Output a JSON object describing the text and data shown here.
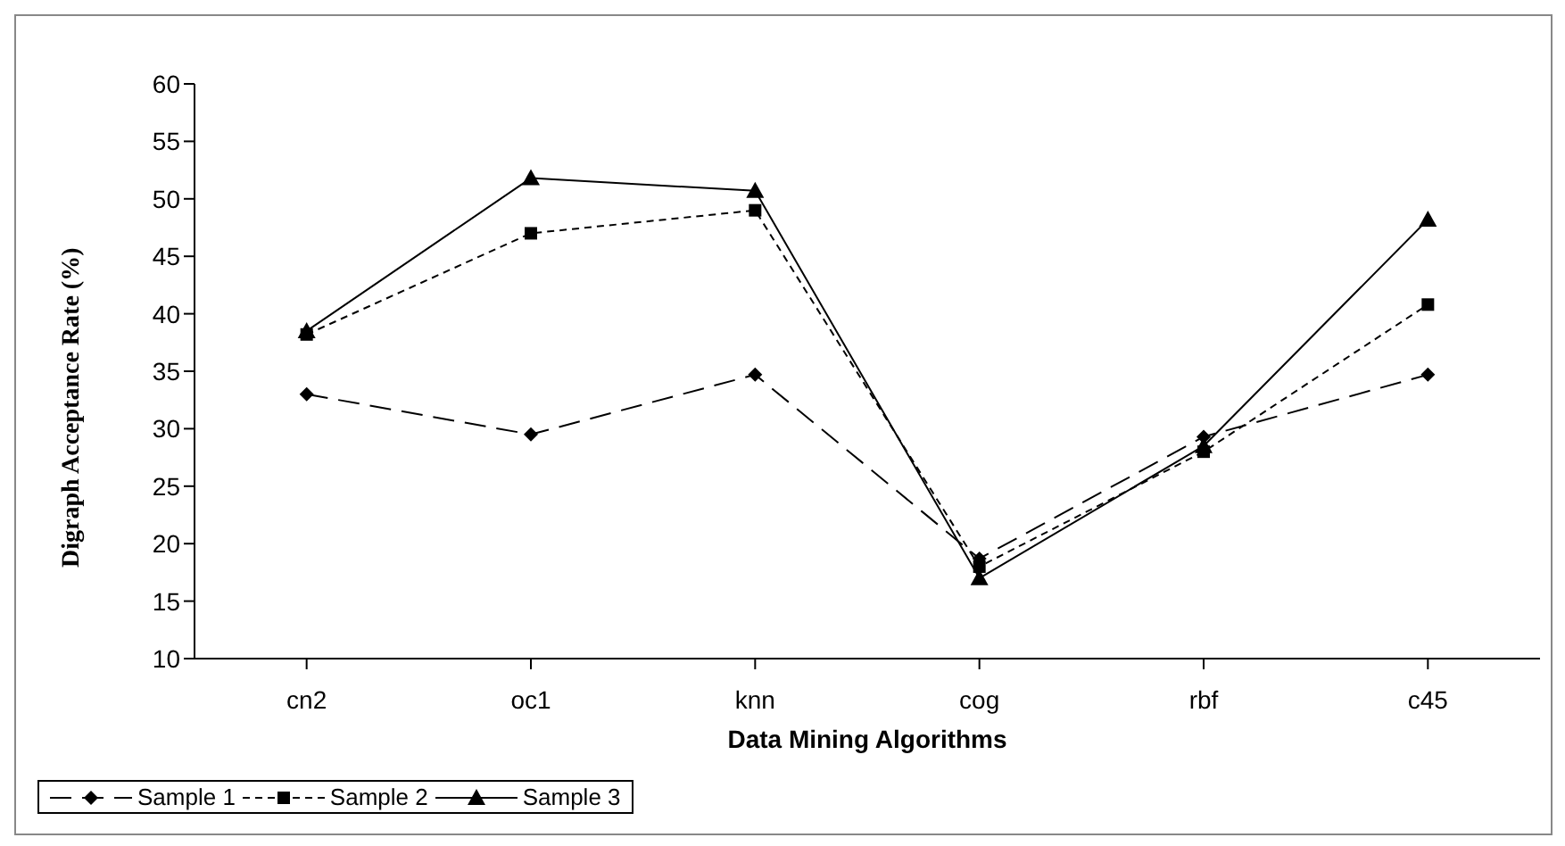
{
  "chart_data": {
    "type": "line",
    "xlabel": "Data Mining Algorithms",
    "ylabel": "Digraph Acceptance Rate (%)",
    "categories": [
      "cn2",
      "oc1",
      "knn",
      "cog",
      "rbf",
      "c45"
    ],
    "series": [
      {
        "name": "Sample 1",
        "color": "#000000",
        "marker": "diamond",
        "line_style": "dashed",
        "values": [
          33,
          29.5,
          34.7,
          18.7,
          29.3,
          34.7
        ]
      },
      {
        "name": "Sample 2",
        "color": "#000000",
        "marker": "square",
        "line_style": "dotted",
        "values": [
          38.2,
          47,
          49,
          18,
          28,
          40.8
        ]
      },
      {
        "name": "Sample 3",
        "color": "#000000",
        "marker": "triangle",
        "line_style": "solid",
        "values": [
          38.5,
          51.8,
          50.7,
          17,
          28.5,
          48.2
        ]
      }
    ],
    "ylim": [
      10,
      60
    ],
    "yticks": [
      10,
      15,
      20,
      25,
      30,
      35,
      40,
      45,
      50,
      55,
      60
    ],
    "grid": false,
    "legend": "bottom left"
  }
}
